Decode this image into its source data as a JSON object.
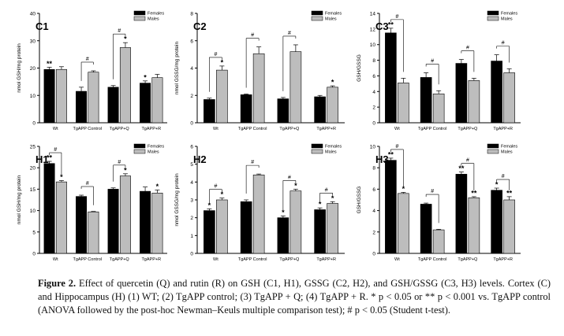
{
  "legend": [
    "Females",
    "Males"
  ],
  "colors": {
    "females": "#000000",
    "males": "#bdbdbd"
  },
  "caption": {
    "label": "Figure 2.",
    "text": " Effect of quercetin (Q) and rutin (R) on GSH (C1, H1), GSSG (C2, H2), and GSH/GSSG (C3, H3) levels. Cortex (C) and Hippocampus (H) (1) WT; (2) TgAPP control; (3) TgAPP + Q; (4) TgAPP + R. * p < 0.05 or ** p < 0.001 vs. TgAPP control (ANOVA followed by the post-hoc Newman–Keuls multiple comparison test); # p < 0.05 (Student t-test)."
  },
  "chart_data": [
    {
      "panel": "C1",
      "type": "bar",
      "ylabel": "nmol GSH/mg protein",
      "ylim": [
        0,
        40
      ],
      "yticks": [
        0,
        10,
        20,
        30,
        40
      ],
      "categories": [
        "Wt",
        "TgAPP Control",
        "TgAPP+Q",
        "TgAPP+R"
      ],
      "series": [
        {
          "name": "Females",
          "values": [
            19.5,
            11.5,
            13,
            14.5
          ],
          "err": [
            0.8,
            1.5,
            0.6,
            0.8
          ],
          "stars": [
            "**",
            "",
            "",
            "*"
          ]
        },
        {
          "name": "Males",
          "values": [
            19.5,
            18.5,
            27.5,
            16.5
          ],
          "err": [
            1.0,
            0.5,
            1.8,
            1.2
          ],
          "stars": [
            "",
            "",
            "*",
            ""
          ]
        }
      ],
      "hash": [
        false,
        true,
        true,
        false
      ]
    },
    {
      "panel": "C2",
      "type": "bar",
      "ylabel": "nmol GSSG/mg protein",
      "ylim": [
        0,
        8
      ],
      "yticks": [
        0,
        2,
        4,
        6,
        8
      ],
      "categories": [
        "Wt",
        "TgAPP Control",
        "TgAPP+Q",
        "TgAPP+R"
      ],
      "series": [
        {
          "name": "Females",
          "values": [
            1.7,
            2.05,
            1.75,
            1.9
          ],
          "err": [
            0.1,
            0.05,
            0.1,
            0.1
          ],
          "stars": [
            "",
            "",
            "",
            ""
          ]
        },
        {
          "name": "Males",
          "values": [
            3.85,
            5.05,
            5.2,
            2.6
          ],
          "err": [
            0.3,
            0.5,
            0.5,
            0.1
          ],
          "stars": [
            "*",
            "",
            "",
            "*"
          ]
        }
      ],
      "hash": [
        true,
        true,
        true,
        false
      ]
    },
    {
      "panel": "C3",
      "type": "bar",
      "ylabel": "GSH/GSSG",
      "ylim": [
        0,
        14
      ],
      "yticks": [
        0,
        2,
        4,
        6,
        8,
        10,
        12,
        14
      ],
      "categories": [
        "Wt",
        "TgAPP Control",
        "TgAPP+Q",
        "TgAPP+R"
      ],
      "series": [
        {
          "name": "Females",
          "values": [
            11.5,
            5.8,
            7.6,
            7.9
          ],
          "err": [
            0.6,
            0.6,
            0.5,
            0.8
          ],
          "stars": [
            "**",
            "",
            "",
            ""
          ]
        },
        {
          "name": "Males",
          "values": [
            5.1,
            3.7,
            5.4,
            6.4
          ],
          "err": [
            0.6,
            0.4,
            0.3,
            0.5
          ],
          "stars": [
            "",
            "",
            "",
            ""
          ]
        }
      ],
      "hash": [
        true,
        true,
        true,
        true
      ]
    },
    {
      "panel": "H1",
      "type": "bar",
      "ylabel": "nmol GSH/mg protein",
      "ylim": [
        0,
        25
      ],
      "yticks": [
        0,
        5,
        10,
        15,
        20,
        25
      ],
      "categories": [
        "Wt",
        "TgAPP Control",
        "TgAPP+Q",
        "TgAPP+R"
      ],
      "series": [
        {
          "name": "Females",
          "values": [
            21,
            13.3,
            15,
            14.5
          ],
          "err": [
            0.5,
            0.3,
            0.3,
            1.0
          ],
          "stars": [
            "**",
            "",
            "",
            ""
          ]
        },
        {
          "name": "Males",
          "values": [
            16.7,
            9.7,
            18.1,
            14.1
          ],
          "err": [
            0.3,
            0.1,
            0.5,
            0.7
          ],
          "stars": [
            "*",
            "",
            "*",
            "*"
          ]
        }
      ],
      "hash": [
        true,
        true,
        true,
        false
      ]
    },
    {
      "panel": "H2",
      "type": "bar",
      "ylabel": "nmol GSSG/mg protein",
      "ylim": [
        0,
        6
      ],
      "yticks": [
        0,
        1,
        2,
        3,
        4,
        5,
        6
      ],
      "categories": [
        "Wt",
        "TgAPP Control",
        "TgAPP+Q",
        "TgAPP+R"
      ],
      "series": [
        {
          "name": "Females",
          "values": [
            2.4,
            2.9,
            2.0,
            2.45
          ],
          "err": [
            0.1,
            0.1,
            0.1,
            0.1
          ],
          "stars": [
            "*",
            "",
            "*",
            "*"
          ]
        },
        {
          "name": "Males",
          "values": [
            3.0,
            4.4,
            3.5,
            2.8
          ],
          "err": [
            0.1,
            0.05,
            0.1,
            0.1
          ],
          "stars": [
            "*",
            "",
            "*",
            "*"
          ]
        }
      ],
      "hash": [
        true,
        true,
        true,
        true
      ]
    },
    {
      "panel": "H3",
      "type": "bar",
      "ylabel": "GSH/GSSG",
      "ylim": [
        0,
        10
      ],
      "yticks": [
        0,
        2,
        4,
        6,
        8,
        10
      ],
      "categories": [
        "Wt",
        "TgAPP Control",
        "TgAPP+Q",
        "TgAPP+R"
      ],
      "series": [
        {
          "name": "Females",
          "values": [
            8.7,
            4.6,
            7.4,
            5.9
          ],
          "err": [
            0.2,
            0.1,
            0.2,
            0.2
          ],
          "stars": [
            "**",
            "",
            "**",
            "*"
          ]
        },
        {
          "name": "Males",
          "values": [
            5.6,
            2.2,
            5.2,
            5.0
          ],
          "err": [
            0.1,
            0.05,
            0.1,
            0.3
          ],
          "stars": [
            "*",
            "",
            "**",
            "**"
          ]
        }
      ],
      "hash": [
        true,
        true,
        true,
        true
      ]
    }
  ]
}
